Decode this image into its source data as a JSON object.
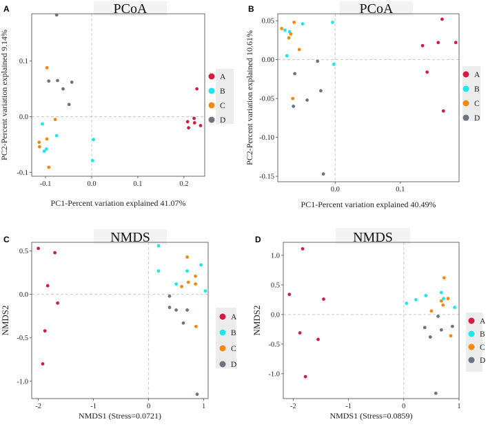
{
  "colors": {
    "A": "#d41c40",
    "B": "#1ce6f0",
    "C": "#f5880e",
    "D": "#6c7480"
  },
  "chart_data": [
    {
      "label": "A",
      "type": "scatter",
      "title": "PCoA",
      "xlabel": "PC1-Percent variation explained 41.07%",
      "ylabel": "PC2-Percent variation explained 9.14%",
      "xlim": [
        -0.13,
        0.245
      ],
      "ylim": [
        -0.107,
        0.185
      ],
      "xticks": [
        -0.1,
        0.0,
        0.1,
        0.2
      ],
      "xtick_labels": [
        "-0.1",
        "0.0",
        "0.1",
        "0.2"
      ],
      "yticks": [
        -0.1,
        0.0,
        0.1
      ],
      "ytick_labels": [
        "-0.1",
        "0.0",
        "0.1"
      ],
      "legend": [
        "A",
        "B",
        "C",
        "D"
      ],
      "series": [
        {
          "name": "A",
          "points": [
            [
              0.228,
              0.05
            ],
            [
              0.222,
              -0.003
            ],
            [
              0.208,
              -0.009
            ],
            [
              0.223,
              -0.011
            ],
            [
              0.236,
              -0.016
            ],
            [
              0.21,
              -0.02
            ]
          ]
        },
        {
          "name": "B",
          "points": [
            [
              -0.107,
              -0.013
            ],
            [
              -0.098,
              -0.058
            ],
            [
              -0.103,
              -0.062
            ],
            [
              -0.076,
              -0.034
            ],
            [
              0.004,
              -0.041
            ],
            [
              0.002,
              -0.079
            ]
          ]
        },
        {
          "name": "C",
          "points": [
            [
              -0.097,
              0.088
            ],
            [
              -0.079,
              -0.005
            ],
            [
              -0.097,
              -0.04
            ],
            [
              -0.114,
              -0.046
            ],
            [
              -0.113,
              -0.054
            ],
            [
              -0.093,
              -0.091
            ]
          ]
        },
        {
          "name": "D",
          "points": [
            [
              -0.076,
              0.183
            ],
            [
              -0.093,
              0.064
            ],
            [
              -0.074,
              0.065
            ],
            [
              -0.062,
              0.05
            ],
            [
              -0.043,
              0.062
            ],
            [
              -0.049,
              0.022
            ]
          ]
        }
      ]
    },
    {
      "label": "B",
      "type": "scatter",
      "title": "PCoA",
      "xlabel": "PC1-Percent variation explained 40.49%",
      "ylabel": "PC2-Percent variation explained 10.61%",
      "xlim": [
        -0.088,
        0.19
      ],
      "ylim": [
        -0.157,
        0.059
      ],
      "xticks": [
        0.0,
        0.1
      ],
      "xtick_labels": [
        "0.0",
        "0.1"
      ],
      "yticks": [
        -0.15,
        -0.1,
        -0.05,
        0.0,
        0.05
      ],
      "ytick_labels": [
        "-0.15",
        "-0.10",
        "-0.05",
        "0.00",
        "0.05"
      ],
      "legend": [
        "A",
        "B",
        "C",
        "D"
      ],
      "series": [
        {
          "name": "A",
          "points": [
            [
              0.164,
              0.052
            ],
            [
              0.158,
              0.022
            ],
            [
              0.185,
              0.022
            ],
            [
              0.134,
              0.018
            ],
            [
              0.141,
              -0.016
            ],
            [
              0.166,
              -0.066
            ]
          ]
        },
        {
          "name": "B",
          "points": [
            [
              -0.077,
              0.038
            ],
            [
              -0.07,
              0.036
            ],
            [
              -0.05,
              0.046
            ],
            [
              -0.004,
              0.048
            ],
            [
              -0.074,
              0.005
            ],
            [
              -0.002,
              -0.006
            ]
          ]
        },
        {
          "name": "C",
          "points": [
            [
              -0.082,
              0.04
            ],
            [
              -0.063,
              0.048
            ],
            [
              -0.068,
              0.033
            ],
            [
              -0.071,
              0.028
            ],
            [
              -0.055,
              0.013
            ],
            [
              -0.065,
              -0.05
            ]
          ]
        },
        {
          "name": "D",
          "points": [
            [
              -0.062,
              -0.018
            ],
            [
              -0.027,
              -0.002
            ],
            [
              -0.043,
              -0.052
            ],
            [
              -0.022,
              -0.04
            ],
            [
              -0.064,
              -0.06
            ],
            [
              -0.018,
              -0.147
            ]
          ]
        }
      ]
    },
    {
      "label": "C",
      "type": "scatter",
      "title": "NMDS",
      "xlabel": "NMDS1 (Stress=0.0721)",
      "ylabel": "NMDS2",
      "xlim": [
        -2.12,
        1.08
      ],
      "ylim": [
        -1.2,
        0.6
      ],
      "xticks": [
        -2,
        -1,
        0,
        1
      ],
      "xtick_labels": [
        "-2",
        "-1",
        "0",
        "1"
      ],
      "yticks": [
        0.5,
        0.0,
        -0.5,
        -1.0
      ],
      "ytick_labels": [
        "0.5",
        "0.0",
        "-0.5",
        "-1.0"
      ],
      "legend": [
        "A",
        "B",
        "C",
        "D"
      ],
      "series": [
        {
          "name": "A",
          "points": [
            [
              -2.0,
              0.53
            ],
            [
              -1.7,
              0.48
            ],
            [
              -1.83,
              0.1
            ],
            [
              -1.65,
              -0.1
            ],
            [
              -1.88,
              -0.42
            ],
            [
              -1.92,
              -0.8
            ]
          ]
        },
        {
          "name": "B",
          "points": [
            [
              0.18,
              0.56
            ],
            [
              0.18,
              0.27
            ],
            [
              0.7,
              0.27
            ],
            [
              0.95,
              0.34
            ],
            [
              0.5,
              0.12
            ],
            [
              1.03,
              0.04
            ]
          ]
        },
        {
          "name": "C",
          "points": [
            [
              0.7,
              0.43
            ],
            [
              0.72,
              0.14
            ],
            [
              0.85,
              0.21
            ],
            [
              0.85,
              0.12
            ],
            [
              0.6,
              0.09
            ],
            [
              0.86,
              -0.37
            ]
          ]
        },
        {
          "name": "D",
          "points": [
            [
              0.38,
              -0.02
            ],
            [
              0.38,
              -0.15
            ],
            [
              0.5,
              -0.18
            ],
            [
              0.7,
              -0.18
            ],
            [
              0.63,
              -0.33
            ],
            [
              0.88,
              -1.15
            ]
          ]
        }
      ]
    },
    {
      "label": "D",
      "type": "scatter",
      "title": "NMDS",
      "xlabel": "NMDS1 (Stress=0.0859)",
      "ylabel": "NMDS2",
      "xlim": [
        -2.18,
        1.0
      ],
      "ylim": [
        -1.42,
        1.22
      ],
      "xticks": [
        -2,
        -1,
        0,
        1
      ],
      "xtick_labels": [
        "-2",
        "-1",
        "0",
        "1"
      ],
      "yticks": [
        1.0,
        0.5,
        0.0,
        -0.5,
        -1.0
      ],
      "ytick_labels": [
        "1.0",
        "0.5",
        "0.0",
        "-0.5",
        "-1.0"
      ],
      "legend": [
        "A",
        "B",
        "C",
        "D"
      ],
      "series": [
        {
          "name": "A",
          "points": [
            [
              -1.83,
              1.11
            ],
            [
              -2.07,
              0.34
            ],
            [
              -1.45,
              0.26
            ],
            [
              -1.88,
              -0.31
            ],
            [
              -1.55,
              -0.42
            ],
            [
              -1.78,
              -1.05
            ]
          ]
        },
        {
          "name": "B",
          "points": [
            [
              0.05,
              0.19
            ],
            [
              0.22,
              0.25
            ],
            [
              0.4,
              0.32
            ],
            [
              0.68,
              0.37
            ],
            [
              0.72,
              0.27
            ],
            [
              0.92,
              0.12
            ]
          ]
        },
        {
          "name": "C",
          "points": [
            [
              0.73,
              0.62
            ],
            [
              0.8,
              0.27
            ],
            [
              0.68,
              0.23
            ],
            [
              0.71,
              0.16
            ],
            [
              0.5,
              0.06
            ],
            [
              0.85,
              -0.36
            ]
          ]
        },
        {
          "name": "D",
          "points": [
            [
              0.62,
              -0.03
            ],
            [
              0.38,
              -0.22
            ],
            [
              0.68,
              -0.26
            ],
            [
              0.48,
              -0.38
            ],
            [
              0.88,
              -0.2
            ],
            [
              0.58,
              -1.33
            ]
          ]
        }
      ]
    }
  ]
}
